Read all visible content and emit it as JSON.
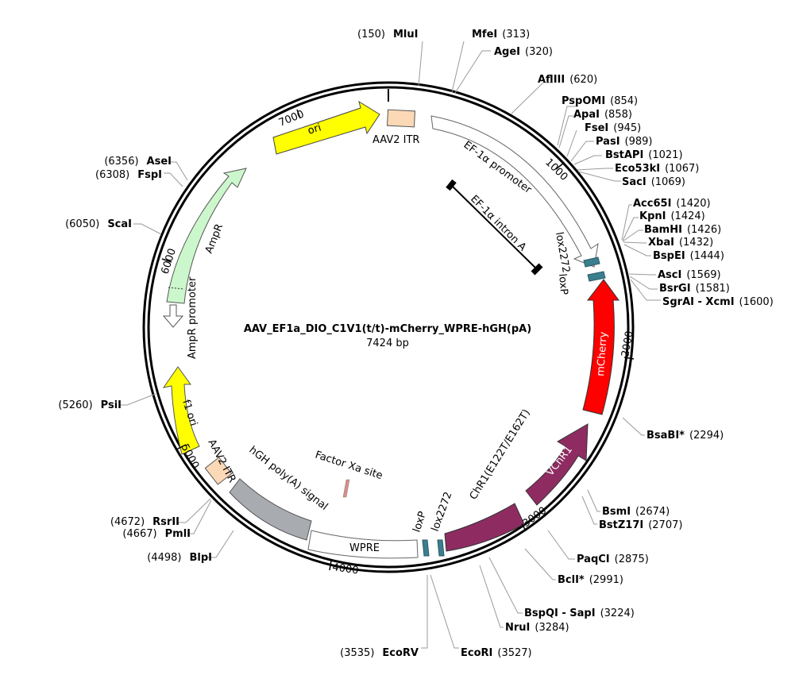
{
  "plasmid": {
    "name": "AAV_EF1a_DIO_C1V1(t/t)-mCherry_WPRE-hGH(pA)",
    "size_label": "7424 bp",
    "length": 7424
  },
  "tick_labels": [
    "1000",
    "2000",
    "3000",
    "4000",
    "5000",
    "6000",
    "7000"
  ],
  "features": [
    {
      "id": "aav2-itr-left",
      "label": "AAV2 ITR",
      "color": "#fcd9b6"
    },
    {
      "id": "ef1a-promoter",
      "label": "EF-1α promoter",
      "color": "#ffffff"
    },
    {
      "id": "ef1a-intron",
      "label": "EF-1α intron A",
      "color": "#000000"
    },
    {
      "id": "lox2272-a",
      "label": "lox2272",
      "color": "#3b7f8f"
    },
    {
      "id": "loxp-a",
      "label": "loxP",
      "color": "#3b7f8f"
    },
    {
      "id": "mcherry",
      "label": "mCherry",
      "color": "#ff0000"
    },
    {
      "id": "vchr1",
      "label": "VChR1",
      "color": "#8e2c62"
    },
    {
      "id": "chr1",
      "label": "ChR1(E122T/E162T)",
      "color": "#8e2c62"
    },
    {
      "id": "lox2272-b",
      "label": "lox2272",
      "color": "#3b7f8f"
    },
    {
      "id": "loxp-b",
      "label": "loxP",
      "color": "#3b7f8f"
    },
    {
      "id": "wpre",
      "label": "WPRE",
      "color": "#ffffff"
    },
    {
      "id": "factor-xa",
      "label": "Factor Xa site",
      "color": "#d98a9a"
    },
    {
      "id": "hgh-polya",
      "label": "hGH poly(A) signal",
      "color": "#a8abb0"
    },
    {
      "id": "aav2-itr-right",
      "label": "AAV2 ITR",
      "color": "#fcd9b6"
    },
    {
      "id": "f1-ori",
      "label": "f1 ori",
      "color": "#ffff00"
    },
    {
      "id": "ampr-promoter",
      "label": "AmpR promoter",
      "color": "#ffffff"
    },
    {
      "id": "ampr",
      "label": "AmpR",
      "color": "#ccf7cc"
    },
    {
      "id": "ori",
      "label": "ori",
      "color": "#ffff00"
    }
  ],
  "sites": [
    {
      "name": "MluI",
      "pos": "(150)"
    },
    {
      "name": "MfeI",
      "pos": "(313)"
    },
    {
      "name": "AgeI",
      "pos": "(320)"
    },
    {
      "name": "AflIII",
      "pos": "(620)"
    },
    {
      "name": "PspOMI",
      "pos": "(854)"
    },
    {
      "name": "ApaI",
      "pos": "(858)"
    },
    {
      "name": "FseI",
      "pos": "(945)"
    },
    {
      "name": "PasI",
      "pos": "(989)"
    },
    {
      "name": "BstAPI",
      "pos": "(1021)"
    },
    {
      "name": "Eco53kI",
      "pos": "(1067)"
    },
    {
      "name": "SacI",
      "pos": "(1069)"
    },
    {
      "name": "Acc65I",
      "pos": "(1420)"
    },
    {
      "name": "KpnI",
      "pos": "(1424)"
    },
    {
      "name": "BamHI",
      "pos": "(1426)"
    },
    {
      "name": "XbaI",
      "pos": "(1432)"
    },
    {
      "name": "BspEI",
      "pos": "(1444)"
    },
    {
      "name": "AscI",
      "pos": "(1569)"
    },
    {
      "name": "BsrGI",
      "pos": "(1581)"
    },
    {
      "name": "SgrAI - XcmI",
      "pos": "(1600)"
    },
    {
      "name": "BsaBI*",
      "pos": "(2294)"
    },
    {
      "name": "BsmI",
      "pos": "(2674)"
    },
    {
      "name": "BstZ17I",
      "pos": "(2707)"
    },
    {
      "name": "PaqCI",
      "pos": "(2875)"
    },
    {
      "name": "BclI*",
      "pos": "(2991)"
    },
    {
      "name": "BspQI - SapI",
      "pos": "(3224)"
    },
    {
      "name": "NruI",
      "pos": "(3284)"
    },
    {
      "name": "EcoRI",
      "pos": "(3527)"
    },
    {
      "name": "EcoRV",
      "pos": "(3535)"
    },
    {
      "name": "BlpI",
      "pos": "(4498)"
    },
    {
      "name": "PmlI",
      "pos": "(4667)"
    },
    {
      "name": "RsrII",
      "pos": "(4672)"
    },
    {
      "name": "PsiI",
      "pos": "(5260)"
    },
    {
      "name": "ScaI",
      "pos": "(6050)"
    },
    {
      "name": "FspI",
      "pos": "(6308)"
    },
    {
      "name": "AseI",
      "pos": "(6356)"
    }
  ]
}
